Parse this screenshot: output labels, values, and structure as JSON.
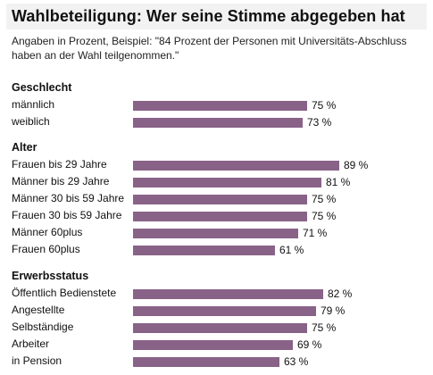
{
  "page": {
    "title": "Wahlbeteiligung: Wer seine Stimme abgegeben hat",
    "subtitle": "Angaben in Prozent, Beispiel: \"84 Prozent der Personen mit Universitäts-Abschluss haben an der Wahl teilgenommen.\""
  },
  "colors": {
    "bar": "#896288",
    "title_background": "#f2f2f2"
  },
  "chart_data": {
    "type": "bar",
    "orientation": "horizontal",
    "unit": "%",
    "groups": [
      {
        "title": "Geschlecht",
        "categories": [
          "männlich",
          "weiblich"
        ],
        "values": [
          75,
          73
        ]
      },
      {
        "title": "Alter",
        "categories": [
          "Frauen bis 29 Jahre",
          "Männer bis 29 Jahre",
          "Männer 30 bis 59 Jahre",
          "Frauen 30 bis 59 Jahre",
          "Männer 60plus",
          "Frauen 60plus"
        ],
        "values": [
          89,
          81,
          75,
          75,
          71,
          61
        ]
      },
      {
        "title": "Erwerbsstatus",
        "categories": [
          "Öffentlich Bedienstete",
          "Angestellte",
          "Selbständige",
          "Arbeiter",
          "in Pension"
        ],
        "values": [
          82,
          79,
          75,
          69,
          63
        ]
      }
    ]
  }
}
